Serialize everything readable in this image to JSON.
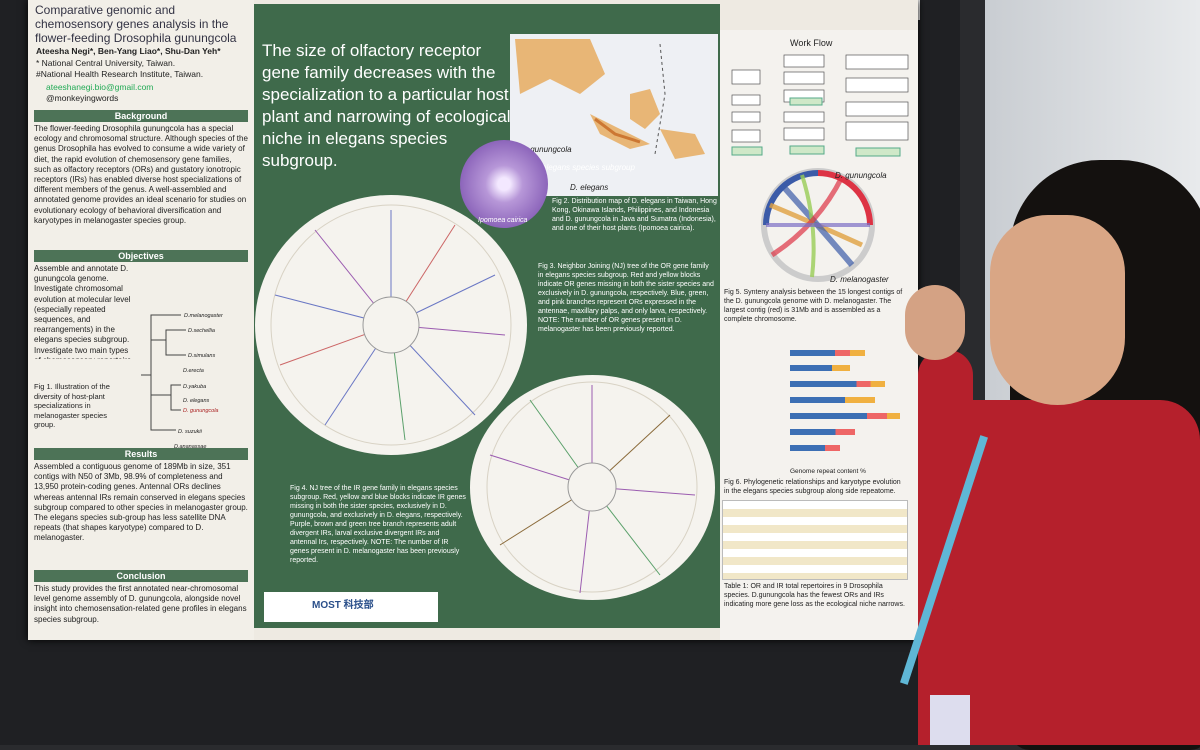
{
  "poster": {
    "title": "Comparative genomic and chemosensory genes analysis in the flower-feeding Drosophila gunungcola",
    "authors": "Ateesha Negi*, Ben-Yang Liao*, Shu-Dan Yeh*",
    "affil1": "* National Central University, Taiwan.",
    "affil2": "#National Health Research Institute, Taiwan.",
    "email": "ateeshanegi.bio@gmail.com",
    "handle": "@monkeyingwords",
    "background_h": "Background",
    "background_text": "The flower-feeding Drosophila gunungcola has a special ecology and chromosomal structure. Although species of the genus Drosophila has evolved to consume a wide variety of diet, the rapid evolution of chemosensory gene families, such as olfactory receptors (ORs) and gustatory ionotropic receptors (IRs) has enabled diverse host specializations of different members of the genus. A well-assembled and annotated genome provides an ideal scenario for studies on evolutionary ecology of behavioral diversification and karyotypes in melanogaster species group.",
    "objectives_h": "Objectives",
    "objectives_text": "Assemble and annotate D. gunungcola genome. Investigate chromosomal evolution at molecular level (especially repeated sequences, and rearrangements) in the elegans species subgroup. Investigate two main types of chemosensory repertoire (ORs and IRs) in elegans species subgroup.",
    "fig1": "Fig 1. Illustration of the diversity of host-plant specializations in melanogaster species group.",
    "results_h": "Results",
    "results_text": "Assembled a contiguous genome of 189Mb in size, 351 contigs with N50 of 3Mb, 98.9% of completeness and 13,950 protein-coding genes. Antennal ORs declines whereas antennal IRs remain conserved in elegans species subgroup compared to other species in melanogaster group. The elegans species sub-group has less satellite DNA repeats (that shapes karyotype) compared to D. melanogaster.",
    "conclusion_h": "Conclusion",
    "conclusion_text": "This study provides the first annotated near-chromosomal level genome assembly of D. gunungcola, alongside novel insight into chemosensation-related gene profiles in elegans species subgroup.",
    "headline": "The size of olfactory receptor gene family decreases with the specialization to a particular host plant and narrowing of ecological niche in elegans species subgroup.",
    "map_labels": [
      "D. gunungcola",
      "elegans species subgroup",
      "D. elegans"
    ],
    "flower_label": "Ipomoea cairica",
    "fig2": "Fig 2. Distribution map of D. elegans in Taiwan, Hong Kong, Okinawa Islands, Philippines, and Indonesia and D. gunungcola in Java and Sumatra (Indonesia), and one of their host plants (Ipomoea cairica).",
    "fig3": "Fig 3. Neighbor Joining (NJ) tree of the OR gene family in elegans species subgroup. Red and yellow blocks indicate OR genes missing in both the sister species and exclusively in D. gunungcola, respectively. Blue, green, and pink branches represent ORs expressed in the antennae, maxillary palps, and only larva, respectively. NOTE: The number of OR genes present in D. melanogaster has been previously reported.",
    "fig4": "Fig 4. NJ tree of the IR gene family in elegans species subgroup. Red, yellow and blue blocks indicate IR genes missing in both the sister species, exclusively in D. gunungcola, and exclusively in D. elegans, respectively. Purple, brown and green tree branch represents adult divergent IRs, larval exclusive divergent IRs and antennal Irs, respectively. NOTE: The number of IR genes present in D. melanogaster has been previously reported.",
    "workflow_h": "Work Flow",
    "fig5": "Fig 5. Synteny analysis between the 15 longest contigs of the D. gunungcola genome with D. melanogaster. The largest contig (red) is 31Mb and is assembled as a complete chromosome.",
    "synteny_top": "D. gunungcola",
    "synteny_bottom": "D. melanogaster",
    "fig6": "Fig 6. Phylogenetic relationships and karyotype evolution in the elegans species subgroup along side repeatome.",
    "xaxis": "Genome repeat content %",
    "table1": "Table 1: OR and IR total repertoires in 9 Drosophila species. D.gunungcola has the fewest ORs and IRs indicating more gene loss as the ecological niche narrows.",
    "logo_text": "MOST 科技部"
  },
  "colors": {
    "green": "#3f6a4b",
    "shirt": "#b5202c",
    "lanyard": "#5fb7d6"
  }
}
